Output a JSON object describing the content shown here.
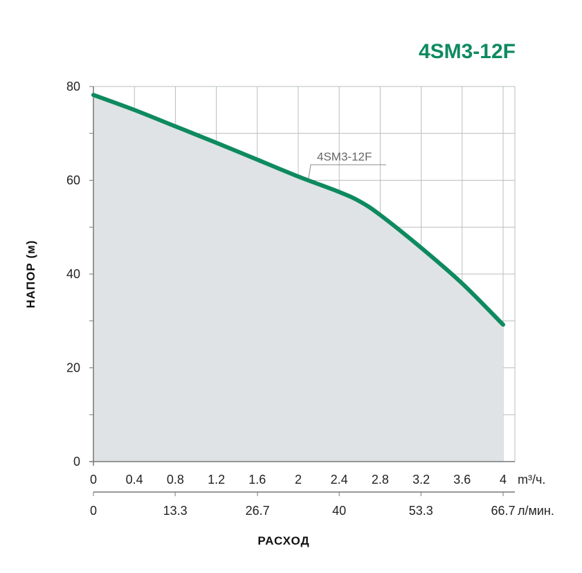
{
  "chart_data": {
    "type": "area",
    "title": "4SM3-12F",
    "xlabel": "РАСХОД",
    "ylabel": "НАПОР (м)",
    "ylim": [
      0,
      80
    ],
    "yticks": [
      "0",
      "20",
      "40",
      "60",
      "80"
    ],
    "xlim": [
      0,
      4
    ],
    "xticks": [
      "0",
      "0.4",
      "0.8",
      "1.2",
      "1.6",
      "2",
      "2.4",
      "2.8",
      "3.2",
      "3.6",
      "4"
    ],
    "x_unit": "m³/ч.",
    "x2ticks": [
      "0",
      "13.3",
      "26.7",
      "40",
      "53.3",
      "66.7"
    ],
    "x2_unit": "л/мин.",
    "grid": true,
    "colors": {
      "line": "#0e8a5f",
      "fill": "#dfe3e5",
      "title": "#0e8a5f"
    },
    "series": [
      {
        "name": "4SM3-12F",
        "x": [
          0,
          0.4,
          0.8,
          1.2,
          1.6,
          2.0,
          2.4,
          2.6,
          2.8,
          3.2,
          3.6,
          4.0
        ],
        "y": [
          78.2,
          75.0,
          71.5,
          68.0,
          64.4,
          60.8,
          57.5,
          55.5,
          52.6,
          45.6,
          38.0,
          29.2
        ]
      }
    ]
  }
}
